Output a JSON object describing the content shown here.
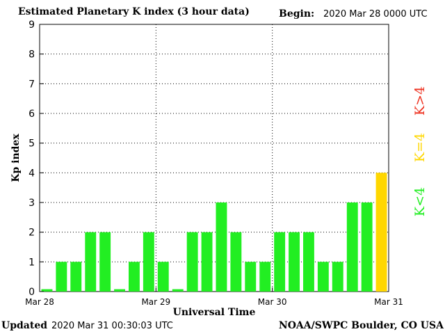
{
  "header": {
    "title": "Estimated Planetary K index (3 hour data)",
    "begin_label": "Begin:",
    "begin_value": "2020 Mar 28 0000 UTC"
  },
  "footer": {
    "updated_label": "Updated",
    "updated_value": "2020 Mar 31 00:30:03 UTC",
    "credit": "NOAA/SWPC Boulder, CO USA"
  },
  "legend": [
    {
      "label": "K<4",
      "color": "#22ee22"
    },
    {
      "label": "K=4",
      "color": "#ffd700"
    },
    {
      "label": "K>4",
      "color": "#ee3322"
    }
  ],
  "chart_data": {
    "type": "bar",
    "title": "Estimated Planetary K index (3 hour data)",
    "ylabel": "Kp index",
    "xlabel": "Universal Time",
    "ylim": [
      0,
      9
    ],
    "yticks": [
      "0",
      "1",
      "2",
      "3",
      "4",
      "5",
      "6",
      "7",
      "8",
      "9"
    ],
    "xticks": [
      "Mar 28",
      "Mar 29",
      "Mar 30",
      "Mar 31"
    ],
    "grid": "dotted",
    "values": [
      0,
      1,
      1,
      2,
      2,
      0,
      1,
      2,
      1,
      0,
      2,
      2,
      3,
      2,
      1,
      1,
      2,
      2,
      2,
      1,
      1,
      3,
      3,
      4
    ],
    "colors": {
      "below": "#22ee22",
      "equal": "#ffd700",
      "above": "#ee3322"
    }
  }
}
